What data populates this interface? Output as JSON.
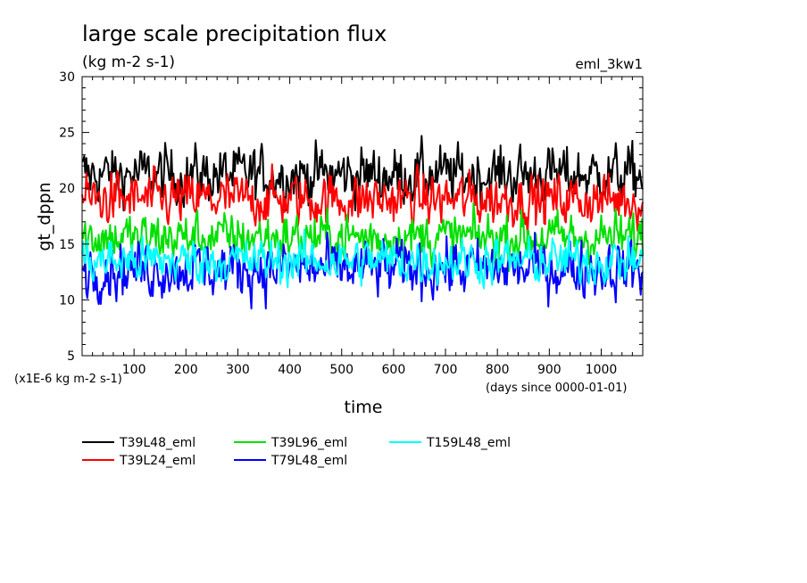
{
  "chart_data": {
    "type": "line",
    "title": "large scale precipitation flux",
    "subtitle": "(kg m-2 s-1)",
    "run_label": "eml_3kw1",
    "ylabel": "gt_dppn",
    "xlabel": "time",
    "y_scale_note": "(x1E-6 kg m-2 s-1)",
    "x_unit_note": "(days since 0000-01-01)",
    "xlim": [
      0,
      1080
    ],
    "ylim": [
      5,
      30
    ],
    "x_ticks": [
      100,
      200,
      300,
      400,
      500,
      600,
      700,
      800,
      900,
      1000
    ],
    "y_ticks": [
      5,
      10,
      15,
      20,
      25,
      30
    ],
    "legend_position": "below plot",
    "series": [
      {
        "name": "T39L48_eml",
        "color": "#000000",
        "mean": 21.2,
        "amp": 1.6,
        "min": 18.0,
        "max": 26.2
      },
      {
        "name": "T39L24_eml",
        "color": "#ff0000",
        "mean": 19.0,
        "amp": 1.5,
        "min": 15.2,
        "max": 23.5
      },
      {
        "name": "T39L96_eml",
        "color": "#00e000",
        "mean": 15.6,
        "amp": 1.4,
        "min": 12.0,
        "max": 20.0
      },
      {
        "name": "T79L48_eml",
        "color": "#0000ff",
        "mean": 12.8,
        "amp": 1.6,
        "min": 9.0,
        "max": 18.5
      },
      {
        "name": "T159L48_eml",
        "color": "#00ffff",
        "mean": 13.5,
        "amp": 1.3,
        "min": 9.2,
        "max": 17.5
      }
    ]
  }
}
